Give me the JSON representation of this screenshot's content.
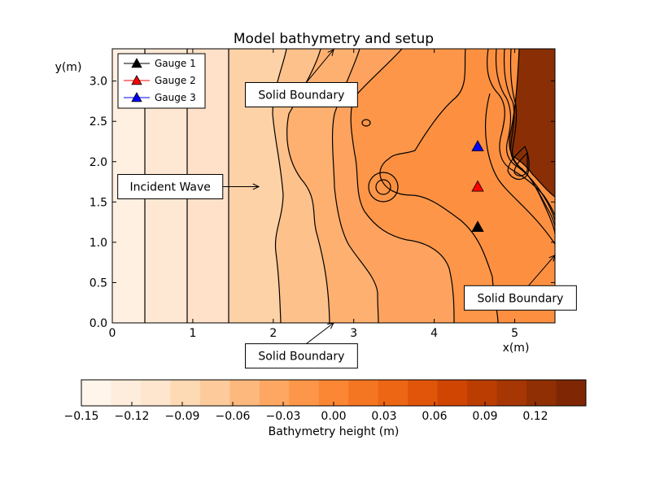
{
  "chart_data": {
    "type": "contour",
    "title": "Model bathymetry and setup",
    "xlabel": "x(m)",
    "ylabel": "y(m)",
    "xlim": [
      0,
      5.5
    ],
    "ylim": [
      0,
      3.4
    ],
    "xticks": [
      "0",
      "1",
      "2",
      "3",
      "4",
      "5"
    ],
    "yticks": [
      "0.0",
      "0.5",
      "1.0",
      "1.5",
      "2.0",
      "2.5",
      "3.0"
    ],
    "grid": false,
    "legend_position": "top-left",
    "gauges": [
      {
        "name": "Gauge 1",
        "x": 4.54,
        "y": 1.19,
        "color": "#000000"
      },
      {
        "name": "Gauge 2",
        "x": 4.54,
        "y": 1.69,
        "color": "#ff0000"
      },
      {
        "name": "Gauge 3",
        "x": 4.54,
        "y": 2.19,
        "color": "#0000ff"
      }
    ],
    "annotations": [
      {
        "text": "Incident Wave",
        "box_x": 0.72,
        "box_y": 1.69,
        "arrow_x": 1.82,
        "arrow_y": 1.69
      },
      {
        "text": "Solid Boundary",
        "box_x": 2.35,
        "box_y": 2.83,
        "arrow_x": 2.75,
        "arrow_y": 3.39
      },
      {
        "text": "Solid Boundary",
        "box_x": 2.35,
        "box_y": -0.41,
        "arrow_x": 2.75,
        "arrow_y": 0.0
      },
      {
        "text": "Solid Boundary",
        "box_x": 5.07,
        "box_y": 0.31,
        "arrow_x": 5.5,
        "arrow_y": 0.84
      }
    ],
    "colorbar": {
      "label": "Bathymetry height (m)",
      "range": [
        -0.15,
        0.135
      ],
      "step": 0.015,
      "tick_values": [
        -0.15,
        -0.12,
        -0.09,
        -0.06,
        -0.03,
        0.0,
        0.03,
        0.06,
        0.09,
        0.12
      ],
      "tick_labels": [
        "−0.15",
        "−0.12",
        "−0.09",
        "−0.06",
        "−0.03",
        "0.00",
        "0.03",
        "0.06",
        "0.09",
        "0.12"
      ],
      "colors": [
        "#fff5eb",
        "#feeddc",
        "#fee6ce",
        "#fdd9b4",
        "#fdcb9b",
        "#fdb97d",
        "#fda762",
        "#fd9649",
        "#fb8634",
        "#f57622",
        "#ec6614",
        "#e1550a",
        "#d04501",
        "#bb3d02",
        "#a63603",
        "#8f2f03",
        "#7f2704"
      ]
    },
    "regions": [
      {
        "value": -0.15,
        "color": "#fff0e2"
      },
      {
        "value": -0.135,
        "color": "#fee8d4"
      },
      {
        "value": -0.12,
        "color": "#fee1c8"
      },
      {
        "value": -0.105,
        "color": "#fdd2a7"
      },
      {
        "value": -0.09,
        "color": "#fdc18b"
      },
      {
        "value": -0.075,
        "color": "#fdb070"
      },
      {
        "value": -0.06,
        "color": "#fda35f"
      },
      {
        "value": -0.045,
        "color": "#fd9648"
      },
      {
        "value": -0.03,
        "color": "#fd9040"
      },
      {
        "value": 0.12,
        "color": "#8a2f05"
      }
    ]
  }
}
